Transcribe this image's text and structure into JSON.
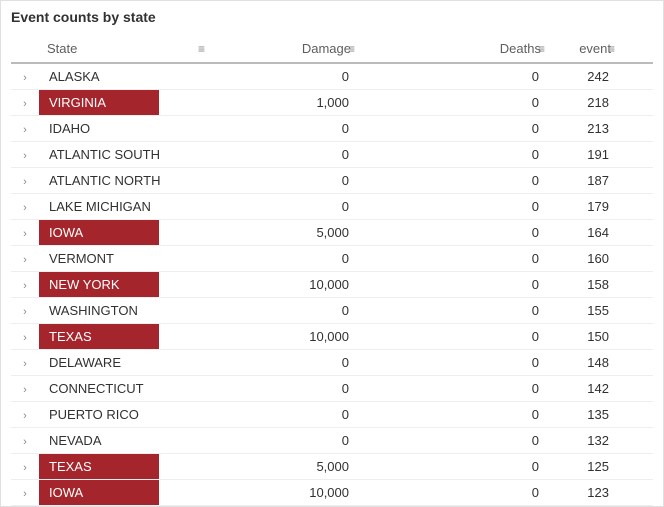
{
  "title": "Event counts by state",
  "colors": {
    "highlight_bg": "#a4262c",
    "highlight_fg": "#ffffff",
    "header_border": "#bbbbbb",
    "row_border": "#eeeeee",
    "text": "#323130",
    "muted": "#605e5c"
  },
  "columns": {
    "state": "State",
    "damage": "Damage",
    "deaths": "Deaths",
    "event": "event"
  },
  "rows": [
    {
      "state": "ALASKA",
      "damage": "0",
      "deaths": "0",
      "event": "242",
      "highlight": false
    },
    {
      "state": "VIRGINIA",
      "damage": "1,000",
      "deaths": "0",
      "event": "218",
      "highlight": true
    },
    {
      "state": "IDAHO",
      "damage": "0",
      "deaths": "0",
      "event": "213",
      "highlight": false
    },
    {
      "state": "ATLANTIC SOUTH",
      "damage": "0",
      "deaths": "0",
      "event": "191",
      "highlight": false
    },
    {
      "state": "ATLANTIC NORTH",
      "damage": "0",
      "deaths": "0",
      "event": "187",
      "highlight": false
    },
    {
      "state": "LAKE MICHIGAN",
      "damage": "0",
      "deaths": "0",
      "event": "179",
      "highlight": false
    },
    {
      "state": "IOWA",
      "damage": "5,000",
      "deaths": "0",
      "event": "164",
      "highlight": true
    },
    {
      "state": "VERMONT",
      "damage": "0",
      "deaths": "0",
      "event": "160",
      "highlight": false
    },
    {
      "state": "NEW YORK",
      "damage": "10,000",
      "deaths": "0",
      "event": "158",
      "highlight": true
    },
    {
      "state": "WASHINGTON",
      "damage": "0",
      "deaths": "0",
      "event": "155",
      "highlight": false
    },
    {
      "state": "TEXAS",
      "damage": "10,000",
      "deaths": "0",
      "event": "150",
      "highlight": true
    },
    {
      "state": "DELAWARE",
      "damage": "0",
      "deaths": "0",
      "event": "148",
      "highlight": false
    },
    {
      "state": "CONNECTICUT",
      "damage": "0",
      "deaths": "0",
      "event": "142",
      "highlight": false
    },
    {
      "state": "PUERTO RICO",
      "damage": "0",
      "deaths": "0",
      "event": "135",
      "highlight": false
    },
    {
      "state": "NEVADA",
      "damage": "0",
      "deaths": "0",
      "event": "132",
      "highlight": false
    },
    {
      "state": "TEXAS",
      "damage": "5,000",
      "deaths": "0",
      "event": "125",
      "highlight": true
    },
    {
      "state": "IOWA",
      "damage": "10,000",
      "deaths": "0",
      "event": "123",
      "highlight": true
    }
  ]
}
